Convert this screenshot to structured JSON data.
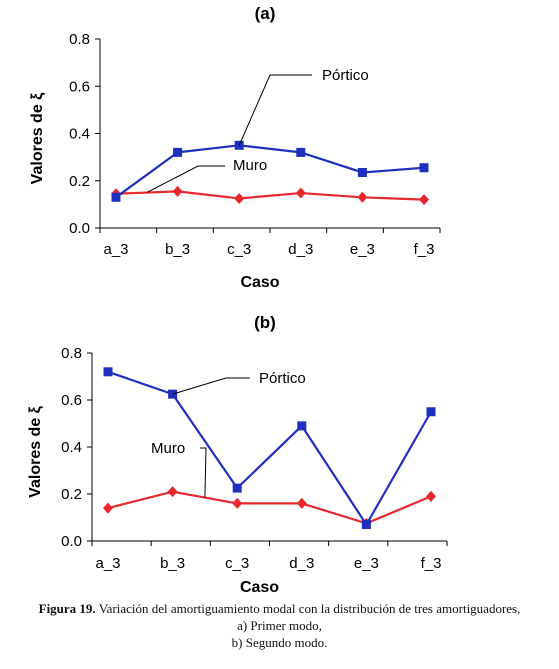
{
  "chart_data": [
    {
      "type": "line",
      "title": "(a)",
      "xlabel": "Caso",
      "ylabel": "Valores de ξ",
      "categories": [
        "a_3",
        "b_3",
        "c_3",
        "d_3",
        "e_3",
        "f_3"
      ],
      "ylim": [
        0,
        0.8
      ],
      "yticks": [
        "0.0",
        "0.2",
        "0.4",
        "0.6",
        "0.8"
      ],
      "grid": false,
      "series": [
        {
          "name": "Pórtico",
          "color": "#1f2fbf",
          "marker": "square",
          "values": [
            0.13,
            0.32,
            0.35,
            0.32,
            0.235,
            0.255
          ]
        },
        {
          "name": "Muro",
          "color": "#e8282e",
          "marker": "diamond",
          "values": [
            0.145,
            0.155,
            0.125,
            0.148,
            0.13,
            0.12
          ]
        }
      ]
    },
    {
      "type": "line",
      "title": "(b)",
      "xlabel": "Caso",
      "ylabel": "Valores de ξ",
      "categories": [
        "a_3",
        "b_3",
        "c_3",
        "d_3",
        "e_3",
        "f_3"
      ],
      "ylim": [
        0,
        0.8
      ],
      "yticks": [
        "0.0",
        "0.2",
        "0.4",
        "0.6",
        "0.8"
      ],
      "grid": false,
      "series": [
        {
          "name": "Pórtico",
          "color": "#1f2fbf",
          "marker": "square",
          "values": [
            0.72,
            0.625,
            0.225,
            0.49,
            0.07,
            0.55
          ]
        },
        {
          "name": "Muro",
          "color": "#e8282e",
          "marker": "diamond",
          "values": [
            0.14,
            0.21,
            0.16,
            0.16,
            0.075,
            0.19
          ]
        }
      ]
    }
  ],
  "caption": {
    "figure_label": "Figura 19.",
    "line1": " Variación del amortiguamiento modal con la distribución de tres amortiguadores,",
    "line2": "a) Primer modo,",
    "line3": "b) Segundo modo."
  }
}
